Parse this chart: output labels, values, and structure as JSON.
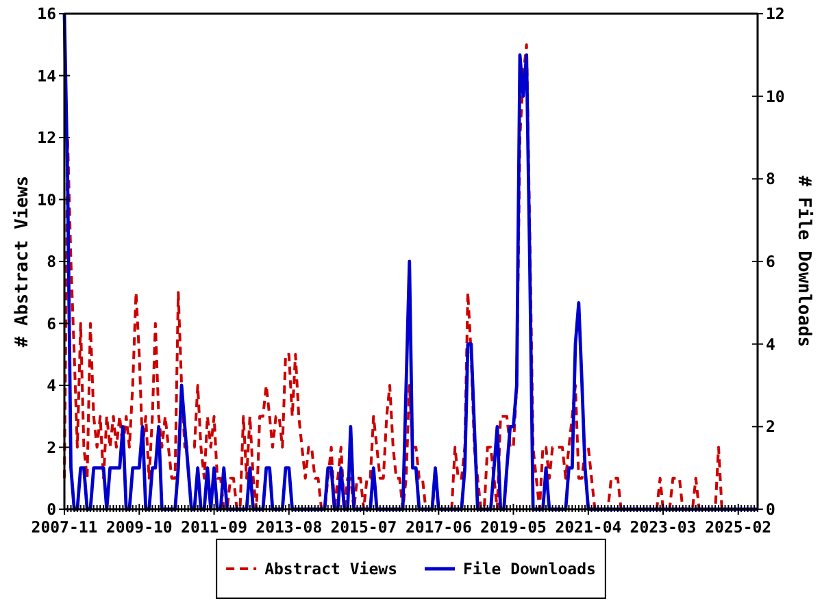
{
  "chart_data": {
    "type": "line",
    "ylabel": "# Abstract Views",
    "y2label": "# File Downloads",
    "legend": "bottom",
    "x": [
      "2007-11",
      "2007-12",
      "2008-01",
      "2008-02",
      "2008-03",
      "2008-04",
      "2008-05",
      "2008-06",
      "2008-07",
      "2008-08",
      "2008-09",
      "2008-10",
      "2008-11",
      "2008-12",
      "2009-01",
      "2009-02",
      "2009-03",
      "2009-04",
      "2009-05",
      "2009-06",
      "2009-07",
      "2009-08",
      "2009-09",
      "2009-10",
      "2009-11",
      "2009-12",
      "2010-01",
      "2010-02",
      "2010-03",
      "2010-04",
      "2010-05",
      "2010-06",
      "2010-07",
      "2010-08",
      "2010-09",
      "2010-10",
      "2010-11",
      "2010-12",
      "2011-01",
      "2011-02",
      "2011-03",
      "2011-04",
      "2011-05",
      "2011-06",
      "2011-07",
      "2011-08",
      "2011-09",
      "2011-10",
      "2011-11",
      "2011-12",
      "2012-01",
      "2012-02",
      "2012-03",
      "2012-04",
      "2012-05",
      "2012-06",
      "2012-07",
      "2012-08",
      "2012-09",
      "2012-10",
      "2012-11",
      "2012-12",
      "2013-01",
      "2013-02",
      "2013-03",
      "2013-04",
      "2013-05",
      "2013-06",
      "2013-07",
      "2013-08",
      "2013-09",
      "2013-10",
      "2013-11",
      "2013-12",
      "2014-01",
      "2014-02",
      "2014-03",
      "2014-04",
      "2014-05",
      "2014-06",
      "2014-07",
      "2014-08",
      "2014-09",
      "2014-10",
      "2014-11",
      "2014-12",
      "2015-01",
      "2015-02",
      "2015-03",
      "2015-04",
      "2015-05",
      "2015-06",
      "2015-07",
      "2015-08",
      "2015-09",
      "2015-10",
      "2015-11",
      "2015-12",
      "2016-01",
      "2016-02",
      "2016-03",
      "2016-04",
      "2016-05",
      "2016-06",
      "2016-07",
      "2016-08",
      "2016-09",
      "2016-10",
      "2016-11",
      "2016-12",
      "2017-01",
      "2017-02",
      "2017-03",
      "2017-04",
      "2017-05",
      "2017-06",
      "2017-07",
      "2017-08",
      "2017-09",
      "2017-10",
      "2017-11",
      "2017-12",
      "2018-01",
      "2018-02",
      "2018-03",
      "2018-04",
      "2018-05",
      "2018-06",
      "2018-07",
      "2018-08",
      "2018-09",
      "2018-10",
      "2018-11",
      "2018-12",
      "2019-01",
      "2019-02",
      "2019-03",
      "2019-04",
      "2019-05",
      "2019-06",
      "2019-07",
      "2019-08",
      "2019-09",
      "2019-10",
      "2019-11",
      "2019-12",
      "2020-01",
      "2020-02",
      "2020-03",
      "2020-04",
      "2020-05",
      "2020-06",
      "2020-07",
      "2020-08",
      "2020-09",
      "2020-10",
      "2020-11",
      "2020-12",
      "2021-01",
      "2021-02",
      "2021-03",
      "2021-04",
      "2021-05",
      "2021-06",
      "2021-07",
      "2021-08",
      "2021-09",
      "2021-10",
      "2021-11",
      "2021-12",
      "2022-01",
      "2022-02",
      "2022-03",
      "2022-04",
      "2022-05",
      "2022-06",
      "2022-07",
      "2022-08",
      "2022-09",
      "2022-10",
      "2022-11",
      "2022-12",
      "2023-01",
      "2023-02",
      "2023-03",
      "2023-04",
      "2023-05",
      "2023-06",
      "2023-07",
      "2023-08",
      "2023-09",
      "2023-10",
      "2023-11",
      "2023-12",
      "2024-01",
      "2024-02",
      "2024-03",
      "2024-04",
      "2024-05",
      "2024-06",
      "2024-07",
      "2024-08",
      "2024-09",
      "2024-10",
      "2024-11",
      "2024-12",
      "2025-01",
      "2025-02",
      "2025-03",
      "2025-04",
      "2025-05",
      "2025-06",
      "2025-07",
      "2025-08"
    ],
    "xlim": [
      "2007-11",
      "2025-08"
    ],
    "xticks": [
      "2007-11",
      {
        "value": "2007-12",
        "label": null
      },
      {
        "value": "2008-01",
        "label": null
      },
      {
        "value": "2008-02",
        "label": null
      },
      {
        "value": "2008-03",
        "label": null
      },
      {
        "value": "2008-04",
        "label": null
      },
      {
        "value": "2008-05",
        "label": null
      },
      {
        "value": "2008-06",
        "label": null
      },
      {
        "value": "2008-07",
        "label": null
      },
      {
        "value": "2008-08",
        "label": null
      },
      {
        "value": "2008-09",
        "label": null
      },
      {
        "value": "2008-10",
        "label": null
      },
      {
        "value": "2008-11",
        "label": null
      },
      {
        "value": "2008-12",
        "label": null
      },
      {
        "value": "2009-01",
        "label": null
      },
      {
        "value": "2009-02",
        "label": null
      },
      {
        "value": "2009-03",
        "label": null
      },
      {
        "value": "2009-04",
        "label": null
      },
      {
        "value": "2009-05",
        "label": null
      },
      {
        "value": "2009-06",
        "label": null
      },
      {
        "value": "2009-07",
        "label": null
      },
      {
        "value": "2009-08",
        "label": null
      },
      {
        "value": "2009-09",
        "label": null
      },
      "2009-10",
      {
        "value": "2009-11",
        "label": null
      },
      {
        "value": "2009-12",
        "label": null
      },
      {
        "value": "2010-01",
        "label": null
      },
      {
        "value": "2010-02",
        "label": null
      },
      {
        "value": "2010-03",
        "label": null
      },
      {
        "value": "2010-04",
        "label": null
      },
      {
        "value": "2010-05",
        "label": null
      },
      {
        "value": "2010-06",
        "label": null
      },
      {
        "value": "2010-07",
        "label": null
      },
      {
        "value": "2010-08",
        "label": null
      },
      {
        "value": "2010-09",
        "label": null
      },
      {
        "value": "2010-10",
        "label": null
      },
      {
        "value": "2010-11",
        "label": null
      },
      {
        "value": "2010-12",
        "label": null
      },
      {
        "value": "2011-01",
        "label": null
      },
      {
        "value": "2011-02",
        "label": null
      },
      {
        "value": "2011-03",
        "label": null
      },
      {
        "value": "2011-04",
        "label": null
      },
      {
        "value": "2011-05",
        "label": null
      },
      {
        "value": "2011-06",
        "label": null
      },
      {
        "value": "2011-07",
        "label": null
      },
      {
        "value": "2011-08",
        "label": null
      },
      "2011-09",
      {
        "value": "2011-10",
        "label": null
      },
      {
        "value": "2011-11",
        "label": null
      },
      {
        "value": "2011-12",
        "label": null
      },
      {
        "value": "2012-01",
        "label": null
      },
      {
        "value": "2012-02",
        "label": null
      },
      {
        "value": "2012-03",
        "label": null
      },
      {
        "value": "2012-04",
        "label": null
      },
      {
        "value": "2012-05",
        "label": null
      },
      {
        "value": "2012-06",
        "label": null
      },
      {
        "value": "2012-07",
        "label": null
      },
      {
        "value": "2012-08",
        "label": null
      },
      {
        "value": "2012-09",
        "label": null
      },
      {
        "value": "2012-10",
        "label": null
      },
      {
        "value": "2012-11",
        "label": null
      },
      {
        "value": "2012-12",
        "label": null
      },
      {
        "value": "2013-01",
        "label": null
      },
      {
        "value": "2013-02",
        "label": null
      },
      {
        "value": "2013-03",
        "label": null
      },
      {
        "value": "2013-04",
        "label": null
      },
      {
        "value": "2013-05",
        "label": null
      },
      {
        "value": "2013-06",
        "label": null
      },
      {
        "value": "2013-07",
        "label": null
      },
      "2013-08",
      {
        "value": "2013-09",
        "label": null
      },
      {
        "value": "2013-10",
        "label": null
      },
      {
        "value": "2013-11",
        "label": null
      },
      {
        "value": "2013-12",
        "label": null
      },
      {
        "value": "2014-01",
        "label": null
      },
      {
        "value": "2014-02",
        "label": null
      },
      {
        "value": "2014-03",
        "label": null
      },
      {
        "value": "2014-04",
        "label": null
      },
      {
        "value": "2014-05",
        "label": null
      },
      {
        "value": "2014-06",
        "label": null
      },
      {
        "value": "2014-07",
        "label": null
      },
      {
        "value": "2014-08",
        "label": null
      },
      {
        "value": "2014-09",
        "label": null
      },
      {
        "value": "2014-10",
        "label": null
      },
      {
        "value": "2014-11",
        "label": null
      },
      {
        "value": "2014-12",
        "label": null
      },
      {
        "value": "2015-01",
        "label": null
      },
      {
        "value": "2015-02",
        "label": null
      },
      {
        "value": "2015-03",
        "label": null
      },
      {
        "value": "2015-04",
        "label": null
      },
      {
        "value": "2015-05",
        "label": null
      },
      {
        "value": "2015-06",
        "label": null
      },
      "2015-07",
      {
        "value": "2015-08",
        "label": null
      },
      {
        "value": "2015-09",
        "label": null
      },
      {
        "value": "2015-10",
        "label": null
      },
      {
        "value": "2015-11",
        "label": null
      },
      {
        "value": "2015-12",
        "label": null
      },
      {
        "value": "2016-01",
        "label": null
      },
      {
        "value": "2016-02",
        "label": null
      },
      {
        "value": "2016-03",
        "label": null
      },
      {
        "value": "2016-04",
        "label": null
      },
      {
        "value": "2016-05",
        "label": null
      },
      {
        "value": "2016-06",
        "label": null
      },
      {
        "value": "2016-07",
        "label": null
      },
      {
        "value": "2016-08",
        "label": null
      },
      {
        "value": "2016-09",
        "label": null
      },
      {
        "value": "2016-10",
        "label": null
      },
      {
        "value": "2016-11",
        "label": null
      },
      {
        "value": "2016-12",
        "label": null
      },
      {
        "value": "2017-01",
        "label": null
      },
      {
        "value": "2017-02",
        "label": null
      },
      {
        "value": "2017-03",
        "label": null
      },
      {
        "value": "2017-04",
        "label": null
      },
      {
        "value": "2017-05",
        "label": null
      },
      "2017-06",
      {
        "value": "2017-07",
        "label": null
      },
      {
        "value": "2017-08",
        "label": null
      },
      {
        "value": "2017-09",
        "label": null
      },
      {
        "value": "2017-10",
        "label": null
      },
      {
        "value": "2017-11",
        "label": null
      },
      {
        "value": "2017-12",
        "label": null
      },
      {
        "value": "2018-01",
        "label": null
      },
      {
        "value": "2018-02",
        "label": null
      },
      {
        "value": "2018-03",
        "label": null
      },
      {
        "value": "2018-04",
        "label": null
      },
      {
        "value": "2018-05",
        "label": null
      },
      {
        "value": "2018-06",
        "label": null
      },
      {
        "value": "2018-07",
        "label": null
      },
      {
        "value": "2018-08",
        "label": null
      },
      {
        "value": "2018-09",
        "label": null
      },
      {
        "value": "2018-10",
        "label": null
      },
      {
        "value": "2018-11",
        "label": null
      },
      {
        "value": "2018-12",
        "label": null
      },
      {
        "value": "2019-01",
        "label": null
      },
      {
        "value": "2019-02",
        "label": null
      },
      {
        "value": "2019-03",
        "label": null
      },
      {
        "value": "2019-04",
        "label": null
      },
      "2019-05",
      {
        "value": "2019-06",
        "label": null
      },
      {
        "value": "2019-07",
        "label": null
      },
      {
        "value": "2019-08",
        "label": null
      },
      {
        "value": "2019-09",
        "label": null
      },
      {
        "value": "2019-10",
        "label": null
      },
      {
        "value": "2019-11",
        "label": null
      },
      {
        "value": "2019-12",
        "label": null
      },
      {
        "value": "2020-01",
        "label": null
      },
      {
        "value": "2020-02",
        "label": null
      },
      {
        "value": "2020-03",
        "label": null
      },
      {
        "value": "2020-04",
        "label": null
      },
      {
        "value": "2020-05",
        "label": null
      },
      {
        "value": "2020-06",
        "label": null
      },
      {
        "value": "2020-07",
        "label": null
      },
      {
        "value": "2020-08",
        "label": null
      },
      {
        "value": "2020-09",
        "label": null
      },
      {
        "value": "2020-10",
        "label": null
      },
      {
        "value": "2020-11",
        "label": null
      },
      {
        "value": "2020-12",
        "label": null
      },
      {
        "value": "2021-01",
        "label": null
      },
      {
        "value": "2021-02",
        "label": null
      },
      {
        "value": "2021-03",
        "label": null
      },
      "2021-04",
      {
        "value": "2021-05",
        "label": null
      },
      {
        "value": "2021-06",
        "label": null
      },
      {
        "value": "2021-07",
        "label": null
      },
      {
        "value": "2021-08",
        "label": null
      },
      {
        "value": "2021-09",
        "label": null
      },
      {
        "value": "2021-10",
        "label": null
      },
      {
        "value": "2021-11",
        "label": null
      },
      {
        "value": "2021-12",
        "label": null
      },
      {
        "value": "2022-01",
        "label": null
      },
      {
        "value": "2022-02",
        "label": null
      },
      {
        "value": "2022-03",
        "label": null
      },
      {
        "value": "2022-04",
        "label": null
      },
      {
        "value": "2022-05",
        "label": null
      },
      {
        "value": "2022-06",
        "label": null
      },
      {
        "value": "2022-07",
        "label": null
      },
      {
        "value": "2022-08",
        "label": null
      },
      {
        "value": "2022-09",
        "label": null
      },
      {
        "value": "2022-10",
        "label": null
      },
      {
        "value": "2022-11",
        "label": null
      },
      {
        "value": "2022-12",
        "label": null
      },
      {
        "value": "2023-01",
        "label": null
      },
      {
        "value": "2023-02",
        "label": null
      },
      "2023-03",
      {
        "value": "2023-04",
        "label": null
      },
      {
        "value": "2023-05",
        "label": null
      },
      {
        "value": "2023-06",
        "label": null
      },
      {
        "value": "2023-07",
        "label": null
      },
      {
        "value": "2023-08",
        "label": null
      },
      {
        "value": "2023-09",
        "label": null
      },
      {
        "value": "2023-10",
        "label": null
      },
      {
        "value": "2023-11",
        "label": null
      },
      {
        "value": "2023-12",
        "label": null
      },
      {
        "value": "2024-01",
        "label": null
      },
      {
        "value": "2024-02",
        "label": null
      },
      {
        "value": "2024-03",
        "label": null
      },
      {
        "value": "2024-04",
        "label": null
      },
      {
        "value": "2024-05",
        "label": null
      },
      {
        "value": "2024-06",
        "label": null
      },
      {
        "value": "2024-07",
        "label": null
      },
      {
        "value": "2024-08",
        "label": null
      },
      {
        "value": "2024-09",
        "label": null
      },
      {
        "value": "2024-10",
        "label": null
      },
      {
        "value": "2024-11",
        "label": null
      },
      {
        "value": "2024-12",
        "label": null
      },
      {
        "value": "2025-01",
        "label": null
      },
      "2025-02",
      {
        "value": "2025-03",
        "label": null
      },
      {
        "value": "2025-04",
        "label": null
      },
      {
        "value": "2025-05",
        "label": null
      },
      {
        "value": "2025-06",
        "label": null
      },
      {
        "value": "2025-07",
        "label": null
      },
      {
        "value": "2025-08",
        "label": null
      }
    ],
    "ylim": [
      0,
      16
    ],
    "yticks": [
      0,
      2,
      4,
      6,
      8,
      10,
      12,
      14,
      16
    ],
    "y2lim": [
      0,
      12
    ],
    "y2ticks": [
      0,
      2,
      4,
      6,
      8,
      10,
      12
    ],
    "series": [
      {
        "name": "Abstract Views",
        "color": "#cc0000",
        "line_style": "dashed",
        "values": [
          1,
          12,
          8,
          5,
          2,
          6,
          2,
          1,
          6,
          3,
          2,
          3,
          1,
          3,
          2,
          3,
          2,
          3,
          2,
          3,
          2,
          4,
          7,
          5,
          2,
          3,
          1,
          3,
          6,
          3,
          2,
          3,
          2,
          1,
          1,
          7,
          4,
          2,
          2,
          2,
          2,
          4,
          2,
          1,
          3,
          2,
          3,
          1,
          1,
          0,
          0,
          1,
          1,
          0,
          0,
          3,
          1,
          3,
          1,
          0,
          3,
          3,
          4,
          3,
          2,
          3,
          3,
          2,
          5,
          5,
          3,
          5,
          3,
          2,
          1,
          2,
          2,
          1,
          1,
          0,
          0,
          1,
          2,
          0,
          1,
          2,
          0,
          1,
          1,
          0,
          1,
          1,
          0,
          1,
          1,
          3,
          2,
          1,
          1,
          3,
          4,
          2,
          1,
          1,
          0,
          1,
          4,
          2,
          2,
          1,
          1,
          0,
          0,
          0,
          1,
          0,
          0,
          0,
          0,
          0,
          2,
          1,
          1,
          2,
          7,
          5,
          2,
          1,
          0,
          0,
          2,
          2,
          1,
          0,
          3,
          3,
          3,
          2,
          2,
          4,
          12,
          14,
          15,
          9,
          2,
          1,
          0,
          2,
          2,
          1,
          2,
          2,
          2,
          2,
          1,
          2,
          3,
          4,
          1,
          1,
          2,
          2,
          1,
          0,
          0,
          0,
          0,
          0,
          1,
          1,
          1,
          0,
          0,
          0,
          0,
          0,
          0,
          0,
          0,
          0,
          0,
          0,
          0,
          1,
          0,
          0,
          0,
          1,
          1,
          1,
          0,
          0,
          0,
          0,
          1,
          0,
          0,
          0,
          0,
          0,
          0,
          2,
          0,
          0,
          0,
          0,
          0,
          null,
          null,
          null,
          null,
          null,
          null,
          null
        ]
      },
      {
        "name": "File Downloads",
        "color": "#0000cc",
        "line_style": "solid",
        "axis": "y2",
        "values": [
          12,
          8,
          1,
          0,
          0,
          1,
          1,
          0,
          0,
          1,
          1,
          1,
          1,
          0,
          1,
          1,
          1,
          1,
          2,
          0,
          0,
          1,
          1,
          1,
          2,
          0,
          0,
          1,
          1,
          2,
          0,
          0,
          0,
          0,
          0,
          1,
          3,
          2,
          1,
          0,
          0,
          1,
          0,
          0,
          1,
          0,
          1,
          0,
          0,
          1,
          0,
          0,
          0,
          0,
          0,
          0,
          0,
          1,
          0,
          0,
          0,
          0,
          1,
          1,
          0,
          0,
          0,
          0,
          1,
          1,
          0,
          0,
          0,
          0,
          0,
          0,
          0,
          0,
          0,
          0,
          0,
          1,
          1,
          0,
          0,
          1,
          0,
          0,
          2,
          0,
          0,
          0,
          0,
          0,
          0,
          1,
          0,
          0,
          0,
          0,
          0,
          0,
          0,
          0,
          0,
          3,
          6,
          1,
          1,
          0,
          0,
          0,
          0,
          0,
          1,
          0,
          0,
          0,
          0,
          0,
          0,
          0,
          0,
          1,
          4,
          4,
          2,
          0,
          0,
          0,
          0,
          0,
          1,
          2,
          0,
          0,
          1,
          2,
          2,
          3,
          11,
          10,
          11,
          6,
          0,
          0,
          0,
          0,
          1,
          0,
          0,
          0,
          0,
          0,
          0,
          1,
          1,
          4,
          5,
          3,
          1,
          0,
          0,
          0,
          0,
          0,
          0,
          0,
          0,
          0,
          0,
          0,
          0,
          0,
          0,
          0,
          0,
          0,
          0,
          0,
          0,
          0,
          0,
          0,
          0,
          0,
          0,
          0,
          0,
          0,
          0,
          0,
          0,
          0,
          0,
          0,
          0,
          0,
          0,
          0,
          0,
          0,
          0,
          0,
          0,
          0,
          0,
          0,
          0,
          0,
          0,
          0,
          0,
          0
        ]
      }
    ]
  }
}
